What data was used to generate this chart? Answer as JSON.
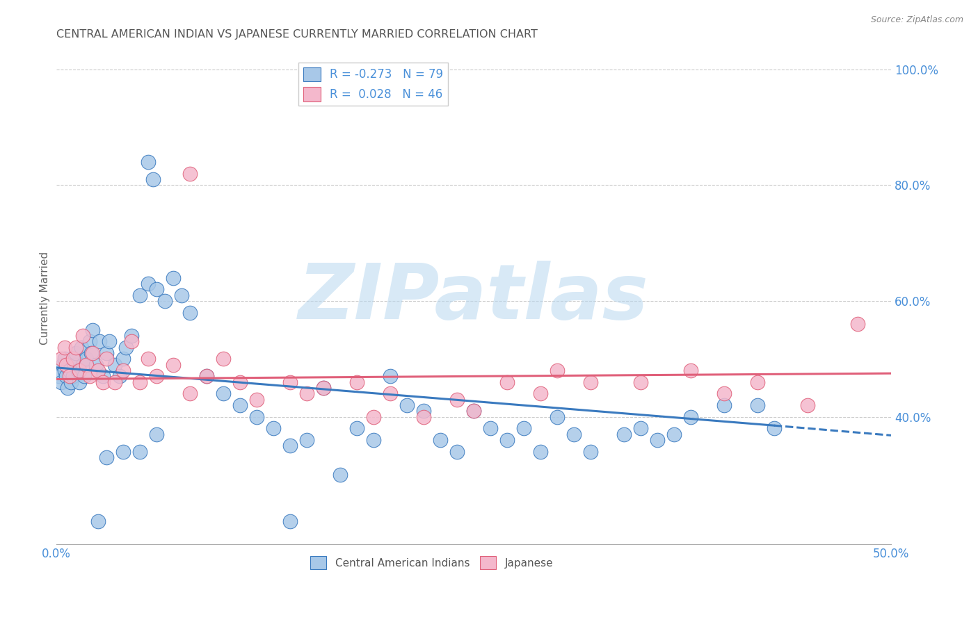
{
  "title": "CENTRAL AMERICAN INDIAN VS JAPANESE CURRENTLY MARRIED CORRELATION CHART",
  "source": "Source: ZipAtlas.com",
  "ylabel": "Currently Married",
  "watermark": "ZIPatlas",
  "blue_color": "#a8c8e8",
  "pink_color": "#f4b8cc",
  "trend_blue_color": "#3a7abf",
  "trend_pink_color": "#e0607a",
  "axis_label_color": "#4a90d9",
  "title_color": "#555555",
  "background_color": "#ffffff",
  "grid_color": "#cccccc",
  "xlim": [
    0.0,
    50.0
  ],
  "ylim": [
    18.0,
    103.0
  ],
  "yticks": [
    40.0,
    60.0,
    80.0,
    100.0
  ],
  "blue_x": [
    0.2,
    0.3,
    0.4,
    0.5,
    0.5,
    0.6,
    0.7,
    0.8,
    0.9,
    1.0,
    1.0,
    1.1,
    1.2,
    1.3,
    1.4,
    1.5,
    1.6,
    1.7,
    1.8,
    2.0,
    2.1,
    2.2,
    2.4,
    2.6,
    2.8,
    3.0,
    3.2,
    3.5,
    3.8,
    4.0,
    4.2,
    4.5,
    5.0,
    5.5,
    6.0,
    6.5,
    7.0,
    7.5,
    8.0,
    9.0,
    10.0,
    11.0,
    12.0,
    13.0,
    14.0,
    15.0,
    16.0,
    17.0,
    18.0,
    19.0,
    20.0,
    21.0,
    22.0,
    23.0,
    24.0,
    25.0,
    26.0,
    27.0,
    28.0,
    29.0,
    30.0,
    31.0,
    32.0,
    34.0,
    35.0,
    36.0,
    37.0,
    38.0,
    40.0,
    42.0,
    43.0,
    5.5,
    5.8,
    14.0,
    3.0,
    4.0,
    5.0,
    6.0,
    2.5
  ],
  "blue_y": [
    47.0,
    46.0,
    49.0,
    50.0,
    48.0,
    47.0,
    45.0,
    48.0,
    46.0,
    50.0,
    47.0,
    49.0,
    51.0,
    48.0,
    46.0,
    52.0,
    49.0,
    47.0,
    50.0,
    53.0,
    51.0,
    55.0,
    49.0,
    53.0,
    47.0,
    51.0,
    53.0,
    49.0,
    47.0,
    50.0,
    52.0,
    54.0,
    61.0,
    63.0,
    62.0,
    60.0,
    64.0,
    61.0,
    58.0,
    47.0,
    44.0,
    42.0,
    40.0,
    38.0,
    35.0,
    36.0,
    45.0,
    30.0,
    38.0,
    36.0,
    47.0,
    42.0,
    41.0,
    36.0,
    34.0,
    41.0,
    38.0,
    36.0,
    38.0,
    34.0,
    40.0,
    37.0,
    34.0,
    37.0,
    38.0,
    36.0,
    37.0,
    40.0,
    42.0,
    42.0,
    38.0,
    84.0,
    81.0,
    22.0,
    33.0,
    34.0,
    34.0,
    37.0,
    22.0
  ],
  "pink_x": [
    0.3,
    0.5,
    0.6,
    0.8,
    1.0,
    1.2,
    1.4,
    1.6,
    1.8,
    2.0,
    2.2,
    2.5,
    2.8,
    3.0,
    3.5,
    4.0,
    4.5,
    5.0,
    5.5,
    6.0,
    7.0,
    8.0,
    9.0,
    10.0,
    11.0,
    12.0,
    14.0,
    15.0,
    16.0,
    18.0,
    19.0,
    20.0,
    22.0,
    24.0,
    25.0,
    27.0,
    29.0,
    30.0,
    32.0,
    35.0,
    38.0,
    40.0,
    42.0,
    45.0,
    48.0,
    8.0
  ],
  "pink_y": [
    50.0,
    52.0,
    49.0,
    47.0,
    50.0,
    52.0,
    48.0,
    54.0,
    49.0,
    47.0,
    51.0,
    48.0,
    46.0,
    50.0,
    46.0,
    48.0,
    53.0,
    46.0,
    50.0,
    47.0,
    49.0,
    44.0,
    47.0,
    50.0,
    46.0,
    43.0,
    46.0,
    44.0,
    45.0,
    46.0,
    40.0,
    44.0,
    40.0,
    43.0,
    41.0,
    46.0,
    44.0,
    48.0,
    46.0,
    46.0,
    48.0,
    44.0,
    46.0,
    42.0,
    56.0,
    82.0
  ],
  "trend_blue_x0": 0.0,
  "trend_blue_y0": 48.5,
  "trend_blue_x1": 43.0,
  "trend_blue_y1": 38.5,
  "trend_blue_dash_x0": 43.0,
  "trend_blue_dash_y0": 38.5,
  "trend_blue_dash_x1": 50.0,
  "trend_blue_dash_y1": 36.8,
  "trend_pink_x0": 0.0,
  "trend_pink_y0": 46.5,
  "trend_pink_x1": 50.0,
  "trend_pink_y1": 47.5
}
